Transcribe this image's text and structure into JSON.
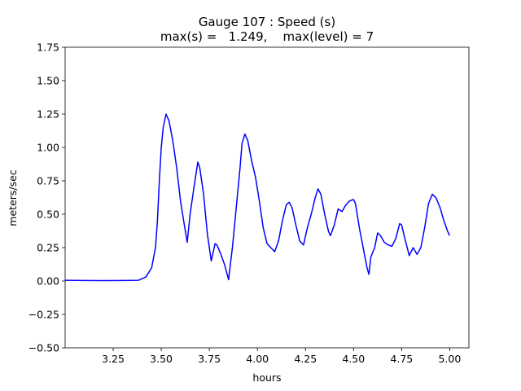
{
  "chart_data": {
    "type": "line",
    "title": "Gauge 107 : Speed (s)",
    "subtitle": "max(s) =   1.249,    max(level) = 7",
    "xlabel": "hours",
    "ylabel": "meters/sec",
    "color": "#0000ff",
    "x": [
      3.0,
      3.1,
      3.2,
      3.3,
      3.38,
      3.42,
      3.45,
      3.47,
      3.48,
      3.49,
      3.5,
      3.51,
      3.525,
      3.54,
      3.56,
      3.58,
      3.6,
      3.62,
      3.635,
      3.65,
      3.67,
      3.69,
      3.7,
      3.72,
      3.74,
      3.76,
      3.78,
      3.79,
      3.81,
      3.83,
      3.85,
      3.87,
      3.89,
      3.91,
      3.92,
      3.935,
      3.95,
      3.97,
      3.99,
      4.01,
      4.03,
      4.05,
      4.07,
      4.09,
      4.11,
      4.13,
      4.15,
      4.165,
      4.18,
      4.2,
      4.22,
      4.24,
      4.26,
      4.28,
      4.3,
      4.315,
      4.33,
      4.35,
      4.37,
      4.38,
      4.4,
      4.42,
      4.44,
      4.46,
      4.48,
      4.5,
      4.51,
      4.53,
      4.55,
      4.57,
      4.58,
      4.59,
      4.61,
      4.625,
      4.64,
      4.66,
      4.68,
      4.7,
      4.72,
      4.74,
      4.75,
      4.77,
      4.79,
      4.81,
      4.83,
      4.85,
      4.87,
      4.89,
      4.91,
      4.93,
      4.95,
      4.97,
      4.99,
      5.0
    ],
    "values": [
      0.005,
      0.004,
      0.003,
      0.004,
      0.005,
      0.03,
      0.1,
      0.25,
      0.45,
      0.75,
      1.0,
      1.15,
      1.249,
      1.2,
      1.05,
      0.85,
      0.6,
      0.42,
      0.29,
      0.5,
      0.7,
      0.89,
      0.85,
      0.65,
      0.35,
      0.15,
      0.28,
      0.27,
      0.2,
      0.12,
      0.01,
      0.25,
      0.55,
      0.85,
      1.03,
      1.1,
      1.05,
      0.9,
      0.78,
      0.6,
      0.4,
      0.28,
      0.25,
      0.22,
      0.3,
      0.45,
      0.57,
      0.59,
      0.55,
      0.42,
      0.3,
      0.27,
      0.4,
      0.5,
      0.62,
      0.69,
      0.65,
      0.5,
      0.37,
      0.34,
      0.42,
      0.54,
      0.52,
      0.57,
      0.6,
      0.61,
      0.58,
      0.4,
      0.25,
      0.1,
      0.05,
      0.18,
      0.25,
      0.36,
      0.34,
      0.29,
      0.27,
      0.26,
      0.32,
      0.43,
      0.42,
      0.3,
      0.19,
      0.25,
      0.2,
      0.25,
      0.4,
      0.58,
      0.65,
      0.62,
      0.55,
      0.45,
      0.37,
      0.34
    ],
    "xlim": [
      3.0,
      5.1
    ],
    "ylim": [
      -0.5,
      1.75
    ],
    "xticks": [
      {
        "value": 3.25,
        "label": "3.25"
      },
      {
        "value": 3.5,
        "label": "3.50"
      },
      {
        "value": 3.75,
        "label": "3.75"
      },
      {
        "value": 4.0,
        "label": "4.00"
      },
      {
        "value": 4.25,
        "label": "4.25"
      },
      {
        "value": 4.5,
        "label": "4.50"
      },
      {
        "value": 4.75,
        "label": "4.75"
      },
      {
        "value": 5.0,
        "label": "5.00"
      }
    ],
    "yticks": [
      {
        "value": -0.5,
        "label": "−0.50"
      },
      {
        "value": -0.25,
        "label": "−0.25"
      },
      {
        "value": 0,
        "label": "0.00"
      },
      {
        "value": 0.25,
        "label": "0.25"
      },
      {
        "value": 0.5,
        "label": "0.50"
      },
      {
        "value": 0.75,
        "label": "0.75"
      },
      {
        "value": 1.0,
        "label": "1.00"
      },
      {
        "value": 1.25,
        "label": "1.25"
      },
      {
        "value": 1.5,
        "label": "1.50"
      },
      {
        "value": 1.75,
        "label": "1.75"
      }
    ]
  }
}
